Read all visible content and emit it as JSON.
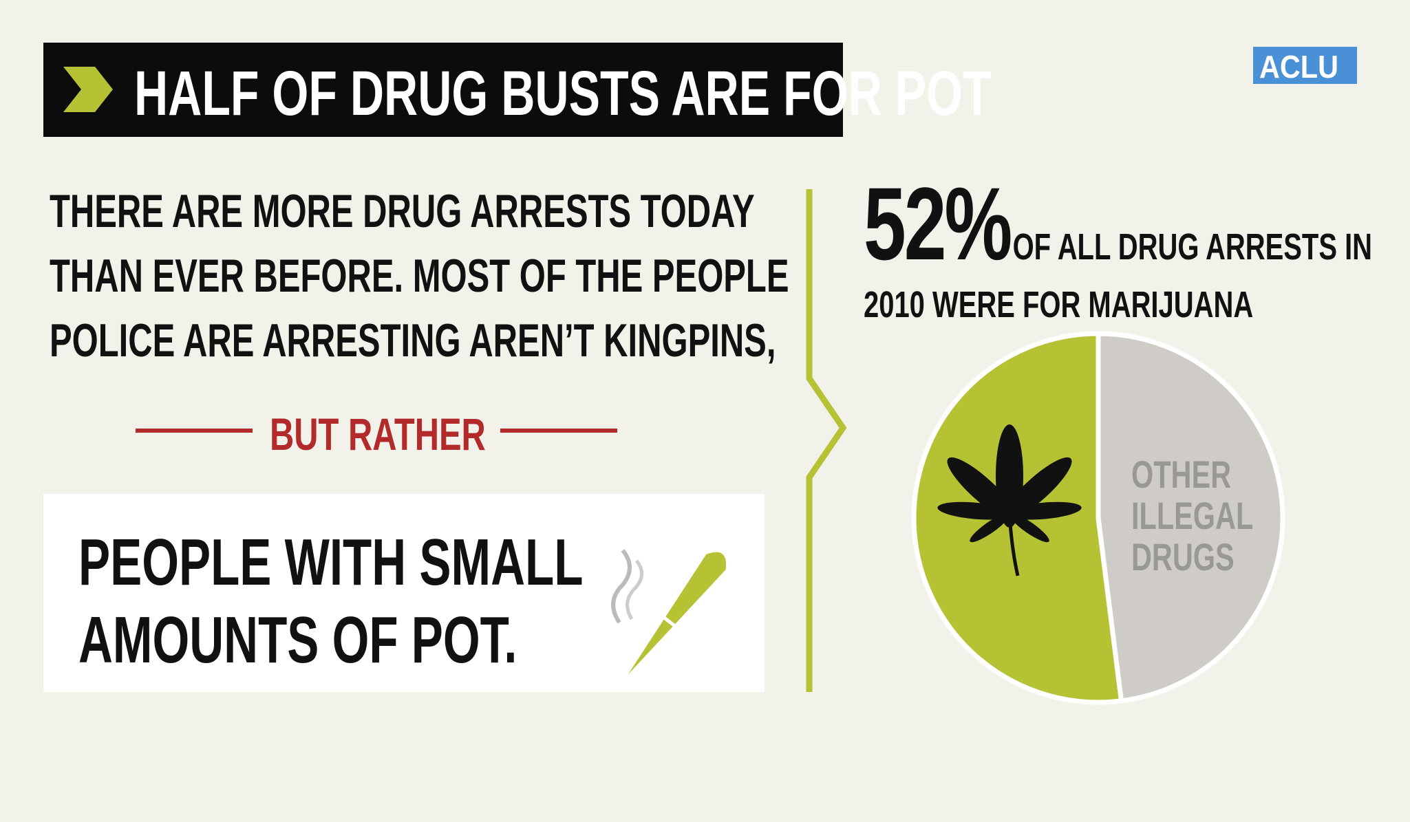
{
  "header": {
    "title": "HALF OF DRUG BUSTS ARE FOR POT",
    "logo": "ACLU"
  },
  "intro": [
    "THERE ARE MORE DRUG ARRESTS TODAY",
    "THAN EVER BEFORE. MOST OF THE PEOPLE",
    "POLICE ARE ARRESTING AREN’T KINGPINS,"
  ],
  "divider": "BUT RATHER",
  "conclusion": [
    "PEOPLE WITH SMALL",
    "AMOUNTS OF POT."
  ],
  "chart_data": {
    "type": "pie",
    "subtitle": "OF ALL DRUG ARRESTS IN 2010 WERE FOR MARIJUANA",
    "categories": [
      null,
      "OTHER ILLEGAL DRUGS"
    ],
    "values": [
      52,
      48
    ],
    "value_labels": [
      "52%",
      null
    ],
    "colors": [
      "#b5c234",
      "#cfccc8"
    ]
  }
}
